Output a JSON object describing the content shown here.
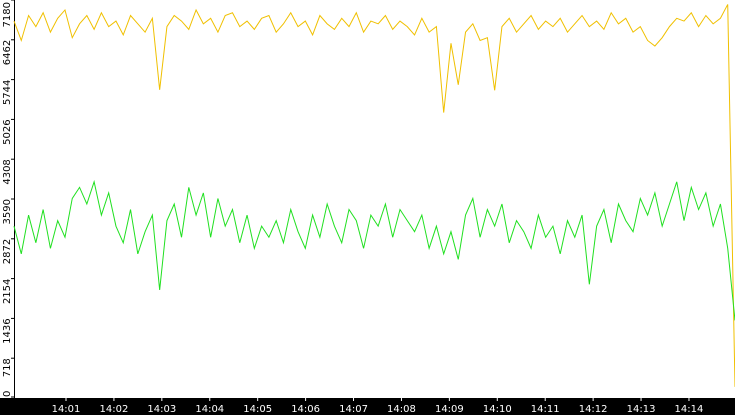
{
  "chart_data": {
    "type": "line",
    "series": [
      {
        "color": "#f0c000",
        "values": [
          6800,
          6450,
          6900,
          6700,
          6950,
          6600,
          6850,
          7000,
          6500,
          6750,
          6900,
          6650,
          6950,
          6700,
          6800,
          6550,
          6900,
          6750,
          6600,
          6850,
          5560,
          6700,
          6900,
          6800,
          6650,
          7000,
          6750,
          6850,
          6600,
          6900,
          6950,
          6700,
          6800,
          6650,
          6850,
          6900,
          6600,
          6750,
          6950,
          6700,
          6800,
          6550,
          6900,
          6750,
          6650,
          6850,
          6700,
          6950,
          6600,
          6800,
          6750,
          6900,
          6650,
          6800,
          6700,
          6550,
          6850,
          6600,
          6700,
          5150,
          6400,
          5650,
          6600,
          6750,
          6450,
          6500,
          5550,
          6700,
          6850,
          6600,
          6750,
          6900,
          6650,
          6800,
          6700,
          6850,
          6600,
          6750,
          6900,
          6700,
          6800,
          6650,
          6950,
          6750,
          6850,
          6600,
          6700,
          6450,
          6350,
          6500,
          6700,
          6850,
          6800,
          6950,
          6700,
          6900,
          6750,
          6850,
          7100,
          200
        ]
      },
      {
        "color": "#20e020",
        "values": [
          3100,
          2600,
          3300,
          2800,
          3400,
          2700,
          3200,
          2900,
          3600,
          3800,
          3500,
          3900,
          3300,
          3700,
          3100,
          2800,
          3400,
          2600,
          3000,
          3300,
          1950,
          3200,
          3500,
          2900,
          3800,
          3300,
          3700,
          2900,
          3600,
          3100,
          3400,
          2800,
          3300,
          2700,
          3100,
          2900,
          3200,
          2800,
          3400,
          3000,
          2700,
          3300,
          2900,
          3500,
          3100,
          2800,
          3400,
          3200,
          2700,
          3300,
          3100,
          3500,
          2900,
          3400,
          3200,
          3000,
          3300,
          2700,
          3100,
          2600,
          3000,
          2500,
          3300,
          3600,
          2900,
          3400,
          3100,
          3500,
          2800,
          3200,
          3000,
          2700,
          3300,
          2900,
          3100,
          2600,
          3200,
          2900,
          3300,
          2050,
          3100,
          3400,
          2800,
          3500,
          3200,
          3000,
          3600,
          3300,
          3700,
          3100,
          3500,
          3900,
          3200,
          3800,
          3400,
          3700,
          3100,
          3500,
          2700,
          1400
        ]
      }
    ],
    "ylim": [
      0,
      7180
    ],
    "yticks": [
      0,
      718,
      1436,
      2154,
      2872,
      3590,
      4308,
      5026,
      5744,
      6462,
      7180
    ],
    "xlim": [
      0,
      99
    ],
    "xticks": [
      {
        "value": 7.14,
        "label": "14:01"
      },
      {
        "value": 13.72,
        "label": "14:02"
      },
      {
        "value": 20.3,
        "label": "14:03"
      },
      {
        "value": 26.88,
        "label": "14:04"
      },
      {
        "value": 33.46,
        "label": "14:05"
      },
      {
        "value": 40.04,
        "label": "14:06"
      },
      {
        "value": 46.62,
        "label": "14:07"
      },
      {
        "value": 53.2,
        "label": "14:08"
      },
      {
        "value": 59.78,
        "label": "14:09"
      },
      {
        "value": 66.36,
        "label": "14:10"
      },
      {
        "value": 72.94,
        "label": "14:11"
      },
      {
        "value": 79.52,
        "label": "14:12"
      },
      {
        "value": 86.1,
        "label": "14:13"
      },
      {
        "value": 92.68,
        "label": "14:14"
      }
    ]
  }
}
